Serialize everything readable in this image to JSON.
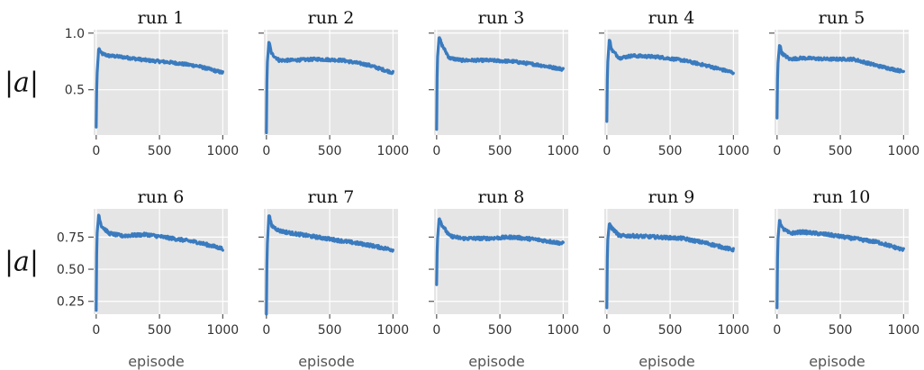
{
  "chart_data": {
    "type": "line",
    "layout": {
      "rows": 2,
      "cols": 5
    },
    "xlim": [
      -20,
      1040
    ],
    "x_ticks": [
      0,
      500,
      1000
    ],
    "x_tick_labels": [
      "0",
      "500",
      "1000"
    ],
    "xlabel": "episode",
    "ylabel": "|a|",
    "rows": [
      {
        "ylim": [
          0.1,
          1.03
        ],
        "y_ticks": [
          0.5,
          1.0
        ],
        "y_tick_labels": [
          "0.5",
          "1.0"
        ]
      },
      {
        "ylim": [
          0.15,
          0.97
        ],
        "y_ticks": [
          0.25,
          0.5,
          0.75
        ],
        "y_tick_labels": [
          "0.25",
          "0.50",
          "0.75"
        ]
      }
    ],
    "line_color": "#3a7bbf",
    "panel_background": "#e5e5e5",
    "grid": true,
    "panels": [
      {
        "title": "run 1",
        "x": [
          0,
          5,
          20,
          40,
          100,
          200,
          400,
          600,
          800,
          1000
        ],
        "y": [
          0.17,
          0.6,
          0.87,
          0.82,
          0.8,
          0.79,
          0.76,
          0.74,
          0.71,
          0.65
        ]
      },
      {
        "title": "run 2",
        "x": [
          0,
          5,
          20,
          40,
          100,
          200,
          400,
          600,
          800,
          1000
        ],
        "y": [
          0.12,
          0.7,
          0.93,
          0.82,
          0.76,
          0.76,
          0.77,
          0.76,
          0.72,
          0.65
        ]
      },
      {
        "title": "run 3",
        "x": [
          0,
          5,
          20,
          40,
          100,
          200,
          400,
          600,
          800,
          1000
        ],
        "y": [
          0.15,
          0.75,
          0.97,
          0.9,
          0.78,
          0.76,
          0.76,
          0.75,
          0.72,
          0.68
        ]
      },
      {
        "title": "run 4",
        "x": [
          0,
          5,
          20,
          40,
          100,
          200,
          400,
          600,
          800,
          1000
        ],
        "y": [
          0.22,
          0.7,
          0.95,
          0.85,
          0.78,
          0.8,
          0.79,
          0.76,
          0.71,
          0.65
        ]
      },
      {
        "title": "run 5",
        "x": [
          0,
          5,
          20,
          40,
          100,
          200,
          400,
          600,
          800,
          1000
        ],
        "y": [
          0.25,
          0.7,
          0.9,
          0.82,
          0.77,
          0.78,
          0.77,
          0.77,
          0.71,
          0.66
        ]
      },
      {
        "title": "run 6",
        "x": [
          0,
          5,
          20,
          40,
          100,
          200,
          400,
          600,
          800,
          1000
        ],
        "y": [
          0.18,
          0.75,
          0.93,
          0.84,
          0.78,
          0.76,
          0.77,
          0.74,
          0.71,
          0.66
        ]
      },
      {
        "title": "run 7",
        "x": [
          0,
          5,
          20,
          40,
          100,
          200,
          400,
          600,
          800,
          1000
        ],
        "y": [
          0.15,
          0.65,
          0.93,
          0.84,
          0.8,
          0.78,
          0.75,
          0.72,
          0.69,
          0.65
        ]
      },
      {
        "title": "run 8",
        "x": [
          0,
          5,
          20,
          40,
          100,
          200,
          400,
          600,
          800,
          1000
        ],
        "y": [
          0.38,
          0.7,
          0.9,
          0.85,
          0.76,
          0.74,
          0.74,
          0.75,
          0.73,
          0.7
        ]
      },
      {
        "title": "run 9",
        "x": [
          0,
          5,
          20,
          40,
          100,
          200,
          400,
          600,
          800,
          1000
        ],
        "y": [
          0.2,
          0.7,
          0.86,
          0.82,
          0.76,
          0.76,
          0.75,
          0.74,
          0.7,
          0.65
        ]
      },
      {
        "title": "run 10",
        "x": [
          0,
          5,
          20,
          40,
          100,
          200,
          400,
          600,
          800,
          1000
        ],
        "y": [
          0.2,
          0.7,
          0.89,
          0.82,
          0.78,
          0.79,
          0.77,
          0.74,
          0.71,
          0.65
        ]
      }
    ]
  }
}
